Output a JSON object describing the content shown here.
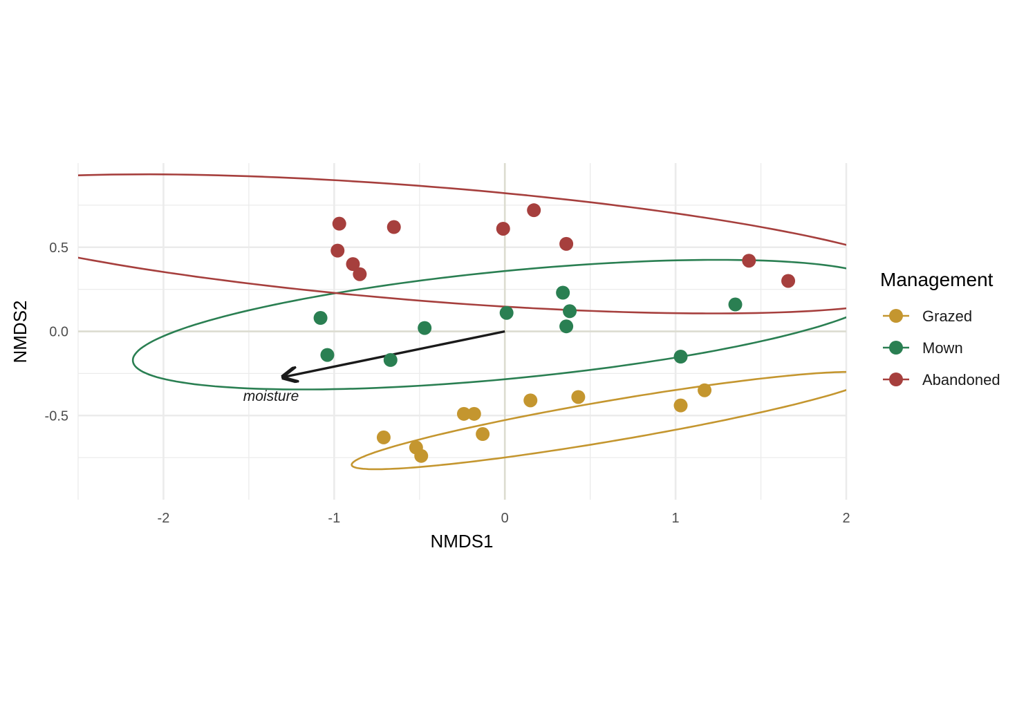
{
  "chart_data": {
    "type": "scatter",
    "title": "",
    "xlabel": "NMDS1",
    "ylabel": "NMDS2",
    "xlim": [
      -2.5,
      2.0
    ],
    "ylim": [
      -1.0,
      1.0
    ],
    "x_ticks": [
      -2,
      -1,
      0,
      1,
      2
    ],
    "x_tick_labels": [
      "-2",
      "-1",
      "0",
      "1",
      "2"
    ],
    "y_ticks": [
      -0.5,
      0.0,
      0.5
    ],
    "y_tick_labels": [
      "-0.5",
      "0.0",
      "0.5"
    ],
    "grid": true,
    "zero_lines": true,
    "legend": {
      "title": "Management",
      "position": "right"
    },
    "series": [
      {
        "name": "Grazed",
        "color": "#C4962F",
        "points": [
          [
            -0.71,
            -0.63
          ],
          [
            -0.52,
            -0.69
          ],
          [
            -0.49,
            -0.74
          ],
          [
            -0.24,
            -0.49
          ],
          [
            -0.18,
            -0.49
          ],
          [
            -0.13,
            -0.61
          ],
          [
            0.15,
            -0.41
          ],
          [
            0.43,
            -0.39
          ],
          [
            1.03,
            -0.44
          ],
          [
            1.17,
            -0.35
          ]
        ],
        "ellipse": {
          "cx": 0.63,
          "cy": -0.53,
          "rx": 1.55,
          "ry": 0.12,
          "angle_deg": 9.8
        }
      },
      {
        "name": "Mown",
        "color": "#2A7F52",
        "points": [
          [
            -1.08,
            0.08
          ],
          [
            -1.04,
            -0.14
          ],
          [
            -0.67,
            -0.17
          ],
          [
            -0.47,
            0.02
          ],
          [
            0.01,
            0.11
          ],
          [
            0.34,
            0.23
          ],
          [
            0.38,
            0.12
          ],
          [
            0.36,
            0.03
          ],
          [
            1.03,
            -0.15
          ],
          [
            1.35,
            0.16
          ]
        ],
        "ellipse": {
          "cx": 0.03,
          "cy": 0.04,
          "rx": 2.22,
          "ry": 0.32,
          "angle_deg": 5.6
        }
      },
      {
        "name": "Abandoned",
        "color": "#A63F3D",
        "points": [
          [
            -0.97,
            0.64
          ],
          [
            -0.98,
            0.48
          ],
          [
            -0.89,
            0.4
          ],
          [
            -0.85,
            0.34
          ],
          [
            -0.65,
            0.62
          ],
          [
            -0.01,
            0.61
          ],
          [
            0.17,
            0.72
          ],
          [
            0.36,
            0.52
          ],
          [
            1.43,
            0.42
          ],
          [
            1.66,
            0.3
          ]
        ],
        "ellipse": {
          "cx": -0.45,
          "cy": 0.52,
          "rx": 2.95,
          "ry": 0.34,
          "angle_deg": -4.6
        }
      }
    ],
    "vectors": [
      {
        "label": "moisture",
        "x": -1.29,
        "y": -0.27,
        "color": "#1a1a1a"
      }
    ]
  }
}
